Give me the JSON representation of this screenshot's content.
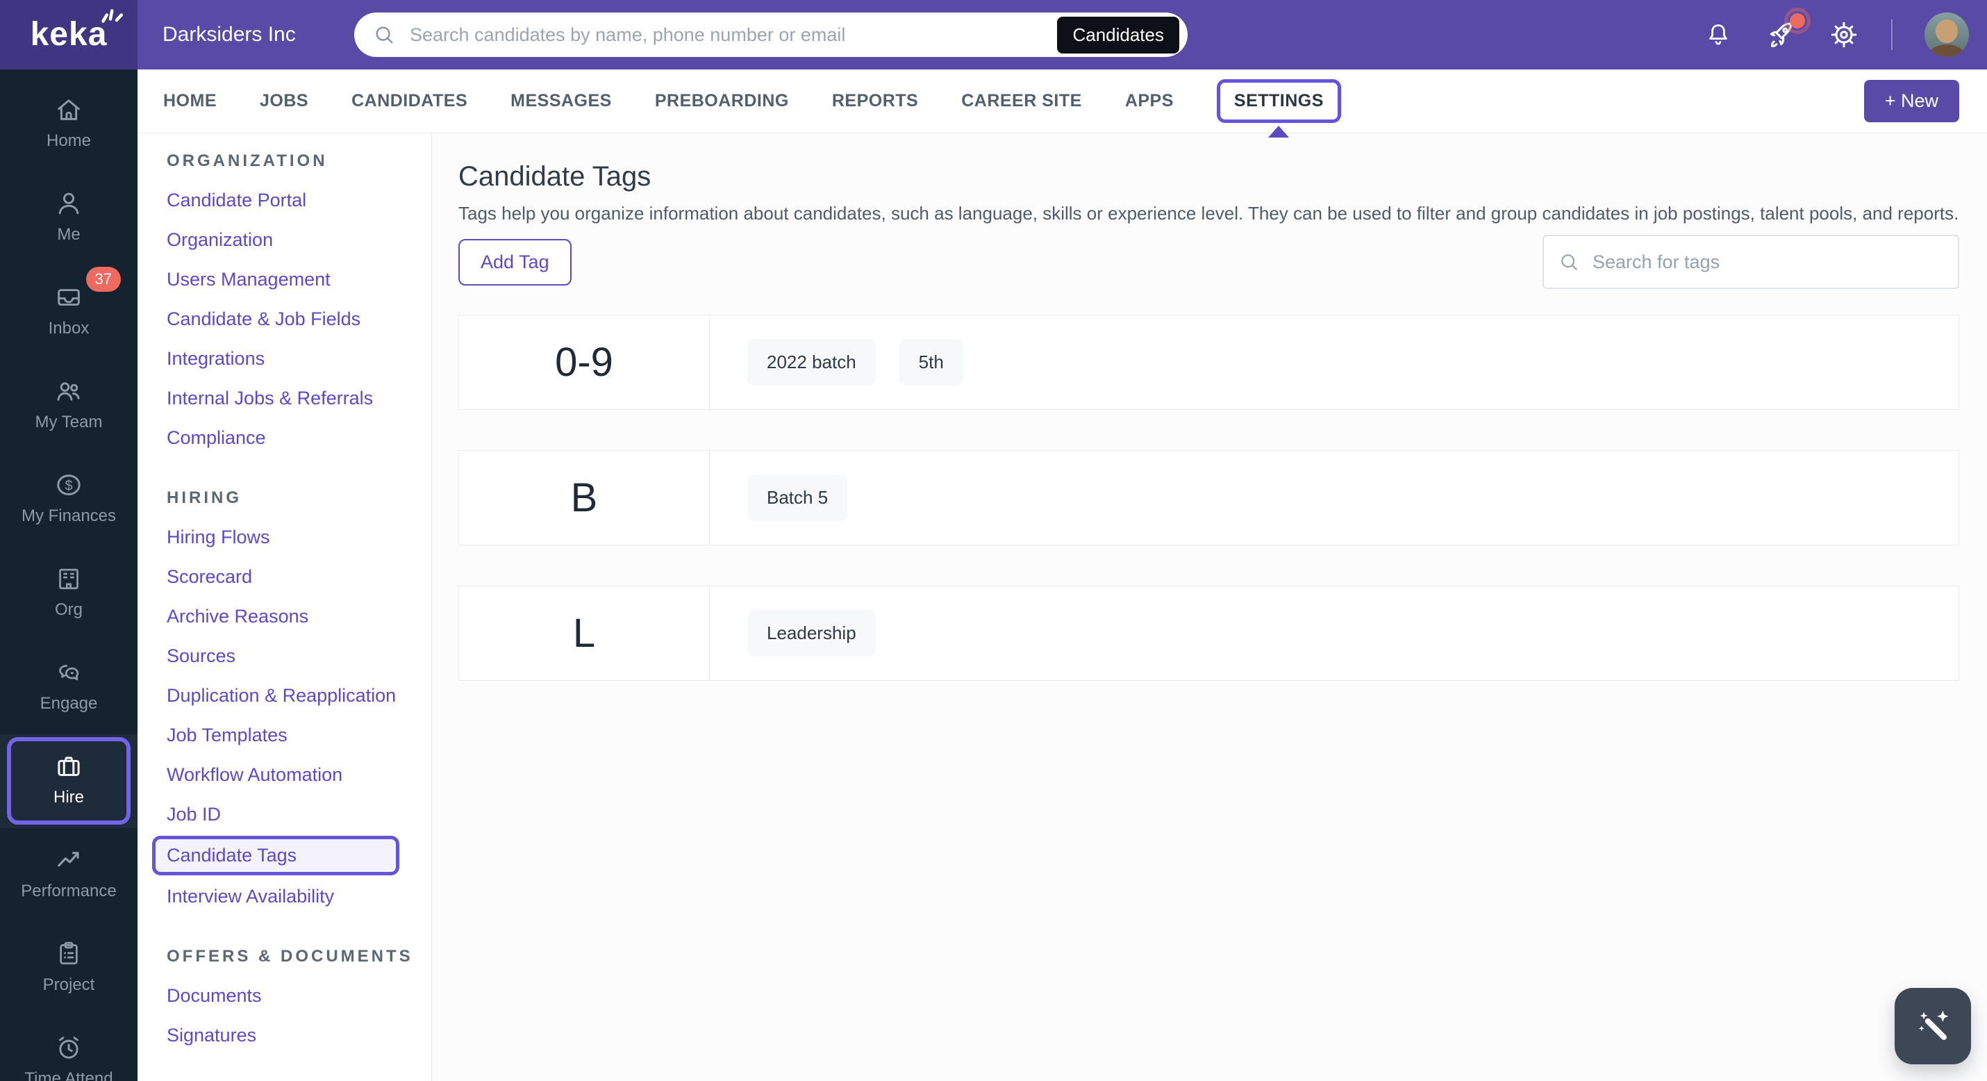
{
  "header": {
    "brand": "keka",
    "company": "Darksiders Inc",
    "search_placeholder": "Search candidates by name, phone number or email",
    "search_scope": "Candidates"
  },
  "tabs": {
    "items": [
      "HOME",
      "JOBS",
      "CANDIDATES",
      "MESSAGES",
      "PREBOARDING",
      "REPORTS",
      "CAREER SITE",
      "APPS",
      "SETTINGS"
    ],
    "active": "SETTINGS",
    "new_button": "+ New"
  },
  "sidebar": {
    "items": [
      {
        "label": "Home",
        "icon": "home"
      },
      {
        "label": "Me",
        "icon": "user"
      },
      {
        "label": "Inbox",
        "icon": "inbox",
        "badge": "37"
      },
      {
        "label": "My Team",
        "icon": "team"
      },
      {
        "label": "My Finances",
        "icon": "finances"
      },
      {
        "label": "Org",
        "icon": "org"
      },
      {
        "label": "Engage",
        "icon": "engage"
      },
      {
        "label": "Hire",
        "icon": "briefcase",
        "active": true
      },
      {
        "label": "Performance",
        "icon": "performance"
      },
      {
        "label": "Project",
        "icon": "project"
      },
      {
        "label": "Time Attend",
        "icon": "time"
      }
    ]
  },
  "settings_nav": {
    "active": "Candidate Tags",
    "sections": [
      {
        "title": "ORGANIZATION",
        "items": [
          "Candidate Portal",
          "Organization",
          "Users Management",
          "Candidate & Job Fields",
          "Integrations",
          "Internal Jobs & Referrals",
          "Compliance"
        ]
      },
      {
        "title": "HIRING",
        "items": [
          "Hiring Flows",
          "Scorecard",
          "Archive Reasons",
          "Sources",
          "Duplication & Reapplication",
          "Job Templates",
          "Workflow Automation",
          "Job ID",
          "Candidate Tags",
          "Interview Availability"
        ]
      },
      {
        "title": "OFFERS & DOCUMENTS",
        "items": [
          "Documents",
          "Signatures"
        ]
      }
    ]
  },
  "main": {
    "title": "Candidate Tags",
    "description": "Tags help you organize information about candidates, such as language, skills or experience level. They can be used to filter and group candidates in job postings, talent pools, and reports.",
    "add_tag_label": "Add Tag",
    "tag_search_placeholder": "Search for tags",
    "groups": [
      {
        "letter": "0-9",
        "tags": [
          "2022 batch",
          "5th"
        ]
      },
      {
        "letter": "B",
        "tags": [
          "Batch 5"
        ]
      },
      {
        "letter": "L",
        "tags": [
          "Leadership"
        ]
      }
    ]
  },
  "colors": {
    "header_purple": "#5a4aa8",
    "logo_purple": "#3f3583",
    "accent_purple": "#6553dc",
    "link_purple": "#5b4ac6",
    "sidebar_navy": "#152330",
    "badge_red": "#ee6a60",
    "wand_slate": "#3d4756",
    "chip_gray": "#f6f8fa"
  }
}
